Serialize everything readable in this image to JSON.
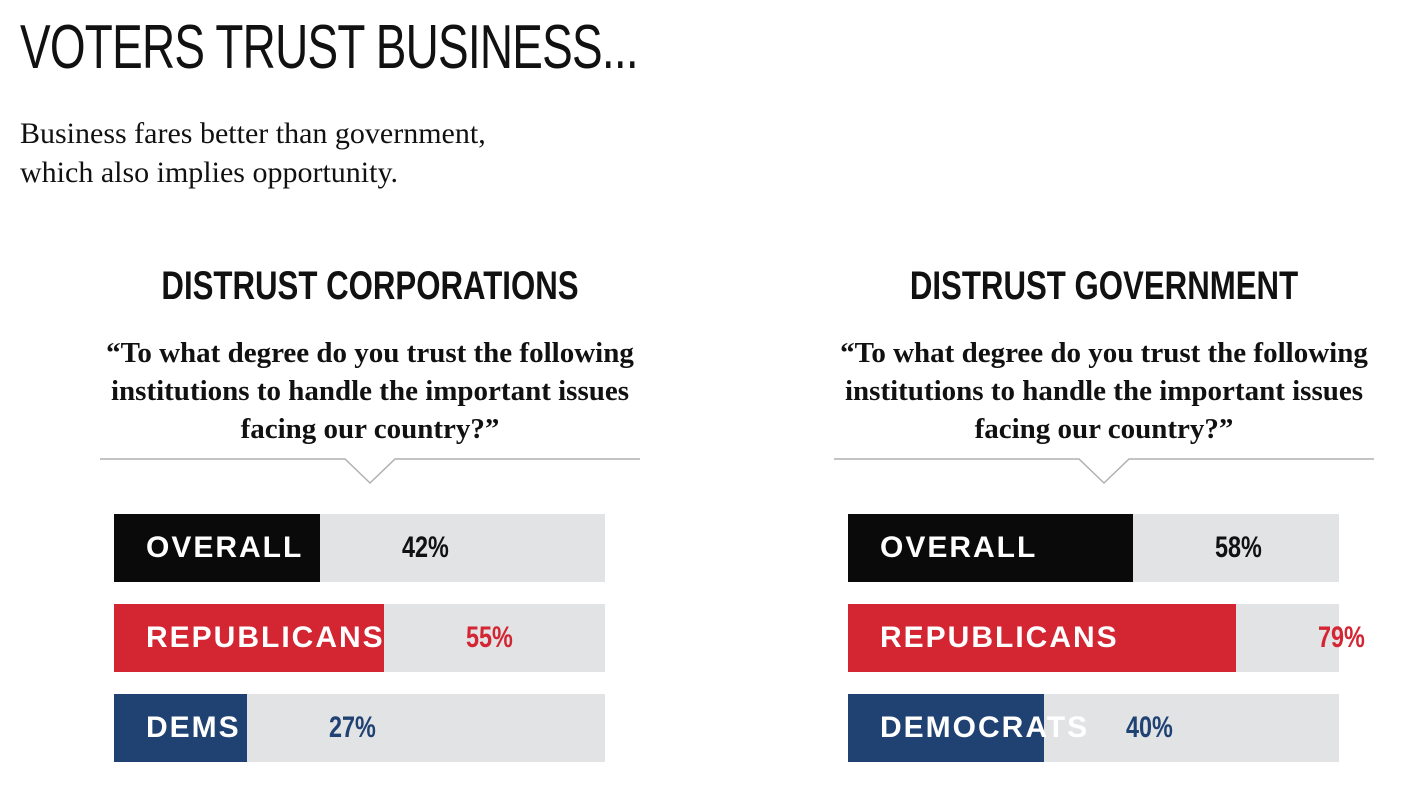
{
  "page": {
    "title": "VOTERS TRUST BUSINESS...",
    "subtitle": "Business fares better than government,\nwhich also implies opportunity."
  },
  "chart_data": [
    {
      "type": "bar",
      "title": "DISTRUST CORPORATIONS",
      "subtitle": "“To what degree do you trust the following institutions to handle the important issues facing our country?”",
      "categories": [
        "OVERALL",
        "REPUBLICANS",
        "DEMS"
      ],
      "values": [
        42,
        55,
        27
      ],
      "value_labels": [
        "42%",
        "55%",
        "27%"
      ],
      "colors": [
        "#0a0a0a",
        "#d42533",
        "#1f4273"
      ],
      "value_text_colors": [
        "#111111",
        "#d42533",
        "#1f4273"
      ],
      "track_color": "#e2e3e5",
      "ylim": [
        0,
        100
      ],
      "orientation": "horizontal"
    },
    {
      "type": "bar",
      "title": "DISTRUST GOVERNMENT",
      "subtitle": "“To what degree do you trust the following institutions to handle the important issues facing our country?”",
      "categories": [
        "OVERALL",
        "REPUBLICANS",
        "DEMOCRATS"
      ],
      "values": [
        58,
        79,
        40
      ],
      "value_labels": [
        "58%",
        "79%",
        "40%"
      ],
      "colors": [
        "#0a0a0a",
        "#d42533",
        "#1f4273"
      ],
      "value_text_colors": [
        "#111111",
        "#d42533",
        "#1f4273"
      ],
      "track_color": "#e2e3e5",
      "ylim": [
        0,
        100
      ],
      "orientation": "horizontal"
    }
  ]
}
